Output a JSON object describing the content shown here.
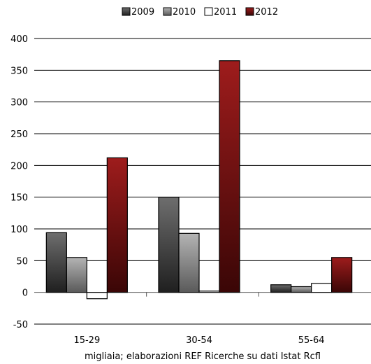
{
  "chart_data": {
    "type": "bar",
    "title": "",
    "xlabel": "migliaia; elaborazioni REF Ricerche su dati Istat Rcfl",
    "ylabel": "",
    "categories": [
      "15-29",
      "30-54",
      "55-64"
    ],
    "series": [
      {
        "name": "2009",
        "values": [
          94,
          150,
          12
        ]
      },
      {
        "name": "2010",
        "values": [
          55,
          93,
          9
        ]
      },
      {
        "name": "2011",
        "values": [
          -10,
          2,
          14
        ]
      },
      {
        "name": "2012",
        "values": [
          212,
          365,
          55
        ]
      }
    ],
    "ylim": [
      -50,
      400
    ],
    "yticks": [
      400,
      350,
      300,
      250,
      200,
      150,
      100,
      50,
      0,
      -50
    ],
    "grid": true,
    "legend_position": "top-center",
    "colors": {
      "2009": "#4a4a4a",
      "2010": "#9a9a9a",
      "2011": "#ffffff",
      "2012": "#8b1a1a"
    }
  }
}
